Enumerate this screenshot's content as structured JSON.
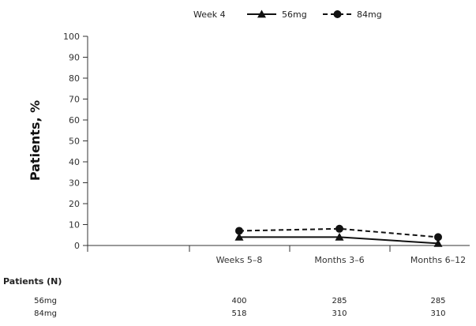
{
  "chart_data": {
    "type": "line",
    "title": "",
    "xlabel": "",
    "ylabel": "Patients, %",
    "ylim": [
      0,
      100
    ],
    "yticks": [
      0,
      10,
      20,
      30,
      40,
      50,
      60,
      70,
      80,
      90,
      100
    ],
    "grid": false,
    "legend_position": "top-center",
    "legend_title": "Week 4",
    "categories": [
      "Weeks 5–8",
      "Months 3–6",
      "Months 6–12"
    ],
    "series": [
      {
        "name": "56mg",
        "marker": "triangle",
        "line_style": "solid",
        "color": "#111111",
        "values": [
          4,
          4,
          1
        ]
      },
      {
        "name": "84mg",
        "marker": "circle",
        "line_style": "dashed",
        "color": "#111111",
        "values": [
          7,
          8,
          4
        ]
      }
    ],
    "patients_table": {
      "title": "Patients (N)",
      "rows": [
        {
          "label": "56mg",
          "values": [
            "400",
            "285",
            "285"
          ]
        },
        {
          "label": "84mg",
          "values": [
            "518",
            "310",
            "310"
          ]
        }
      ]
    }
  }
}
